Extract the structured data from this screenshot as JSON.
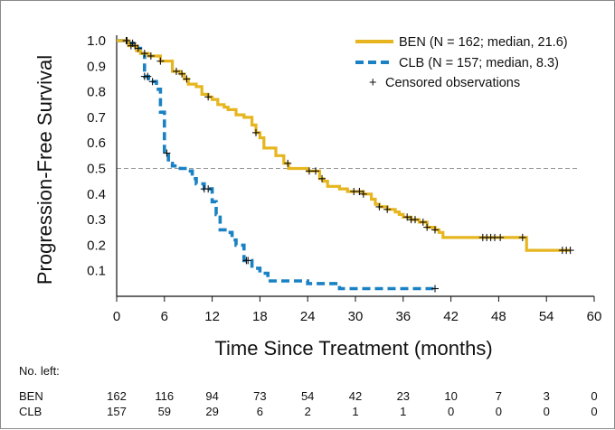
{
  "chart_data": {
    "type": "line",
    "title": "",
    "xlabel": "Time Since Treatment (months)",
    "ylabel": "Progression-Free Survival",
    "xlim": [
      0,
      60
    ],
    "ylim": [
      0,
      1.0
    ],
    "x_ticks": [
      "0",
      "6",
      "12",
      "18",
      "24",
      "30",
      "36",
      "42",
      "48",
      "54",
      "60"
    ],
    "y_ticks": [
      "0.1",
      "0.2",
      "0.3",
      "0.4",
      "0.5",
      "0.6",
      "0.7",
      "0.8",
      "0.9",
      "1.0"
    ],
    "reference_line": {
      "y": 0.5,
      "style": "dashed"
    },
    "series": [
      {
        "name": "BEN (N = 162; median, 21.6)",
        "color": "#e6b51f",
        "line_style": "solid",
        "x": [
          0,
          1.5,
          2.5,
          3,
          4,
          5.5,
          7,
          8,
          8.5,
          9,
          10,
          10.7,
          11.5,
          12,
          12.7,
          13.5,
          14,
          15,
          16,
          17,
          17.5,
          18,
          18.5,
          19.5,
          20,
          21,
          21.6,
          22,
          24,
          25.5,
          26,
          26.5,
          27,
          28,
          29,
          30,
          31,
          32,
          32.5,
          33,
          34,
          35,
          35.5,
          36,
          37,
          38,
          39,
          40,
          40.5,
          41,
          42,
          51,
          51.5,
          57
        ],
        "y": [
          1.0,
          0.98,
          0.96,
          0.95,
          0.94,
          0.92,
          0.88,
          0.87,
          0.85,
          0.83,
          0.82,
          0.79,
          0.78,
          0.77,
          0.75,
          0.74,
          0.73,
          0.71,
          0.7,
          0.67,
          0.64,
          0.62,
          0.58,
          0.58,
          0.55,
          0.52,
          0.5,
          0.5,
          0.49,
          0.46,
          0.45,
          0.43,
          0.43,
          0.42,
          0.41,
          0.41,
          0.4,
          0.38,
          0.36,
          0.35,
          0.34,
          0.33,
          0.32,
          0.31,
          0.3,
          0.29,
          0.27,
          0.26,
          0.25,
          0.23,
          0.23,
          0.23,
          0.18,
          0.18
        ]
      },
      {
        "name": "CLB (N = 157; median, 8.3)",
        "color": "#1a82c4",
        "line_style": "dashed",
        "x": [
          0,
          1.5,
          2.5,
          3,
          3.5,
          4,
          5,
          5.5,
          6,
          6.5,
          7,
          8,
          9,
          9.5,
          10,
          11,
          12,
          12.5,
          13,
          14,
          14.5,
          15,
          16,
          17,
          18,
          19,
          20,
          24,
          28,
          40
        ],
        "y": [
          1.0,
          0.99,
          0.97,
          0.95,
          0.86,
          0.84,
          0.81,
          0.72,
          0.56,
          0.52,
          0.51,
          0.5,
          0.49,
          0.46,
          0.44,
          0.42,
          0.37,
          0.32,
          0.26,
          0.25,
          0.22,
          0.2,
          0.14,
          0.11,
          0.09,
          0.06,
          0.06,
          0.05,
          0.03,
          0.03
        ]
      }
    ],
    "censored": {
      "BEN": {
        "x": [
          1.2,
          1.8,
          2.3,
          3.5,
          4.3,
          5.5,
          7.5,
          8.2,
          8.8,
          11.5,
          17.5,
          21.5,
          24.2,
          25,
          25.8,
          29.8,
          30.5,
          31,
          33,
          34,
          36.5,
          37,
          37.5,
          38.5,
          39,
          40,
          46,
          46.5,
          47,
          47.5,
          48.2,
          51,
          56,
          56.5,
          57
        ]
      },
      "CLB": {
        "x": [
          1.3,
          2,
          2.7,
          3.5,
          3.9,
          4.5,
          6.3,
          11,
          11.5,
          16.3,
          16.5,
          40
        ]
      }
    },
    "legend": {
      "placement": "top-right",
      "censored_label": "Censored observations"
    },
    "risk_table": {
      "title": "No. left:",
      "times": [
        0,
        6,
        12,
        18,
        24,
        30,
        36,
        42,
        48,
        54,
        60
      ],
      "rows": [
        {
          "label": "BEN",
          "values": [
            "162",
            "116",
            "94",
            "73",
            "54",
            "42",
            "23",
            "10",
            "7",
            "3",
            "0"
          ]
        },
        {
          "label": "CLB",
          "values": [
            "157",
            "59",
            "29",
            "6",
            "2",
            "1",
            "1",
            "0",
            "0",
            "0",
            "0"
          ]
        }
      ]
    }
  }
}
